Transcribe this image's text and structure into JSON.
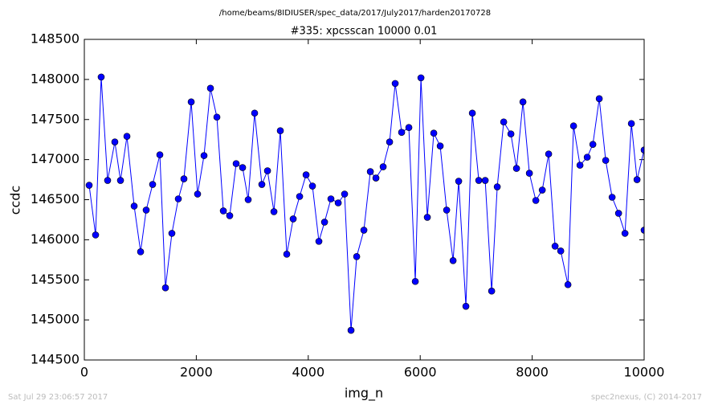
{
  "chart_data": {
    "type": "line",
    "suptitle": "/home/beams/8IDIUSER/spec_data/2017/July2017/harden20170728",
    "title": "#335: xpcsscan 10000 0.01",
    "xlabel": "img_n",
    "ylabel": "ccdc",
    "color": "#0000ff",
    "marker": true,
    "x": [
      86,
      201,
      301,
      416,
      545,
      646,
      761,
      890,
      1005,
      1105,
      1220,
      1349,
      1449,
      1564,
      1679,
      1779,
      1909,
      2023,
      2138,
      2253,
      2368,
      2483,
      2597,
      2712,
      2827,
      2927,
      3042,
      3171,
      3272,
      3387,
      3501,
      3616,
      3731,
      3846,
      3961,
      4075,
      4190,
      4291,
      4405,
      4535,
      4649,
      4764,
      4865,
      4994,
      5109,
      5209,
      5338,
      5453,
      5553,
      5668,
      5797,
      5912,
      6013,
      6127,
      6242,
      6357,
      6472,
      6587,
      6687,
      6816,
      6931,
      7046,
      7161,
      7276,
      7376,
      7491,
      7620,
      7720,
      7835,
      7950,
      8065,
      8180,
      8294,
      8409,
      8510,
      8639,
      8739,
      8854,
      8983,
      9084,
      9198,
      9313,
      9428,
      9543,
      9658,
      9772,
      9873,
      10000,
      10000
    ],
    "values": [
      146680,
      146060,
      148030,
      146740,
      147220,
      146740,
      147290,
      146420,
      145850,
      146370,
      146690,
      147060,
      145400,
      146080,
      146510,
      146760,
      147720,
      146570,
      147050,
      147890,
      147530,
      146360,
      146300,
      146950,
      146900,
      146500,
      147580,
      146690,
      146860,
      146350,
      147360,
      145820,
      146260,
      146540,
      146810,
      146670,
      145980,
      146220,
      146510,
      146460,
      146570,
      144870,
      145790,
      146120,
      146850,
      146770,
      146910,
      147220,
      147950,
      147340,
      147400,
      145480,
      148020,
      146280,
      147330,
      147170,
      146370,
      145740,
      146730,
      145170,
      147580,
      146740,
      146740,
      145360,
      146660,
      147470,
      147320,
      146890,
      147720,
      146830,
      146490,
      146620,
      147070,
      145920,
      145860,
      145440,
      147420,
      146930,
      147030,
      147190,
      147760,
      146990,
      146530,
      146330,
      146080,
      147450,
      146750,
      147120,
      146120
    ],
    "xlim": [
      0,
      10000
    ],
    "xticks": [
      0,
      2000,
      4000,
      6000,
      8000,
      10000
    ],
    "ylim": [
      144500,
      148500
    ],
    "yticks": [
      144500,
      145000,
      145500,
      146000,
      146500,
      147000,
      147500,
      148000,
      148500
    ]
  },
  "footer": {
    "left": "Sat Jul 29 23:06:57 2017",
    "right": "spec2nexus, (C) 2014-2017"
  }
}
